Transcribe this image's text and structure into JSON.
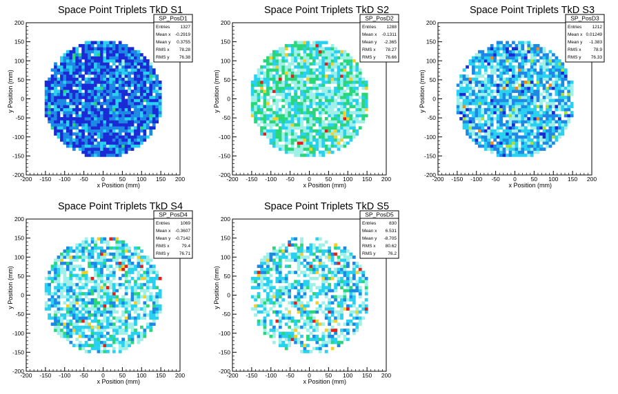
{
  "colors": {
    "background": "#ffffff",
    "frame": "#000000",
    "palette_low_to_high": [
      "#1a2bd6",
      "#1e88e5",
      "#29d0f0",
      "#9ef0e8",
      "#2bd67b",
      "#a8e13c",
      "#f0d02a",
      "#f08a1e",
      "#e0201a"
    ]
  },
  "chart_data": [
    {
      "type": "heatmap",
      "title": "Space Point Triplets TkD S1",
      "xlabel": "x Position (mm)",
      "ylabel": "y Position (mm)",
      "xlim": [
        -200,
        200
      ],
      "ylim": [
        -200,
        200
      ],
      "xticks": [
        -200,
        -150,
        -100,
        -50,
        0,
        50,
        100,
        150,
        200
      ],
      "yticks": [
        -200,
        -150,
        -100,
        -50,
        0,
        50,
        100,
        150,
        200
      ],
      "grid": false,
      "distribution": "disc",
      "disc_radius": 155,
      "bin_size": 8,
      "fill_fraction": 0.95,
      "dominant_level": 0.08,
      "max_level": 0.45,
      "stats": {
        "name": "SP_PosD1",
        "rows": [
          [
            "Entries",
            "1327"
          ],
          [
            "Mean x",
            "-0.2919"
          ],
          [
            "Mean y",
            "0.3755"
          ],
          [
            "RMS x",
            "78.28"
          ],
          [
            "RMS y",
            "76.38"
          ]
        ]
      }
    },
    {
      "type": "heatmap",
      "title": "Space Point Triplets TkD S2",
      "xlabel": "x Position (mm)",
      "ylabel": "y Position (mm)",
      "xlim": [
        -200,
        200
      ],
      "ylim": [
        -200,
        200
      ],
      "xticks": [
        -200,
        -150,
        -100,
        -50,
        0,
        50,
        100,
        150,
        200
      ],
      "yticks": [
        -200,
        -150,
        -100,
        -50,
        0,
        50,
        100,
        150,
        200
      ],
      "grid": false,
      "distribution": "disc",
      "disc_radius": 155,
      "bin_size": 8,
      "fill_fraction": 0.85,
      "dominant_level": 0.38,
      "max_level": 0.98,
      "stats": {
        "name": "SP_PosD2",
        "rows": [
          [
            "Entries",
            "1288"
          ],
          [
            "Mean x",
            "-0.1311"
          ],
          [
            "Mean y",
            "-2.365"
          ],
          [
            "RMS x",
            "78.27"
          ],
          [
            "RMS y",
            "76.66"
          ]
        ]
      }
    },
    {
      "type": "heatmap",
      "title": "Space Point Triplets TkD S3",
      "xlabel": "x Position (mm)",
      "ylabel": "y Position (mm)",
      "xlim": [
        -200,
        200
      ],
      "ylim": [
        -200,
        200
      ],
      "xticks": [
        -200,
        -150,
        -100,
        -50,
        0,
        50,
        100,
        150,
        200
      ],
      "yticks": [
        -200,
        -150,
        -100,
        -50,
        0,
        50,
        100,
        150,
        200
      ],
      "grid": false,
      "distribution": "disc",
      "disc_radius": 155,
      "bin_size": 8,
      "fill_fraction": 0.85,
      "dominant_level": 0.22,
      "max_level": 0.9,
      "stats": {
        "name": "SP_PosD3",
        "rows": [
          [
            "Entries",
            "1212"
          ],
          [
            "Mean x",
            "0.01249"
          ],
          [
            "Mean y",
            "-1.383"
          ],
          [
            "RMS x",
            "78.9"
          ],
          [
            "RMS y",
            "76.33"
          ]
        ]
      }
    },
    {
      "type": "heatmap",
      "title": "Space Point Triplets TkD S4",
      "xlabel": "x Position (mm)",
      "ylabel": "y Position (mm)",
      "xlim": [
        -200,
        200
      ],
      "ylim": [
        -200,
        200
      ],
      "xticks": [
        -200,
        -150,
        -100,
        -50,
        0,
        50,
        100,
        150,
        200
      ],
      "yticks": [
        -200,
        -150,
        -100,
        -50,
        0,
        50,
        100,
        150,
        200
      ],
      "grid": false,
      "distribution": "disc",
      "disc_radius": 155,
      "bin_size": 8,
      "fill_fraction": 0.72,
      "dominant_level": 0.3,
      "max_level": 1.0,
      "stats": {
        "name": "SP_PosD4",
        "rows": [
          [
            "Entries",
            "1069"
          ],
          [
            "Mean x",
            "-0.3607"
          ],
          [
            "Mean y",
            "-0.7142"
          ],
          [
            "RMS x",
            "79.4"
          ],
          [
            "RMS y",
            "76.71"
          ]
        ]
      }
    },
    {
      "type": "heatmap",
      "title": "Space Point Triplets TkD S5",
      "xlabel": "x Position (mm)",
      "ylabel": "y Position (mm)",
      "xlim": [
        -200,
        200
      ],
      "ylim": [
        -200,
        200
      ],
      "xticks": [
        -200,
        -150,
        -100,
        -50,
        0,
        50,
        100,
        150,
        200
      ],
      "yticks": [
        -200,
        -150,
        -100,
        -50,
        0,
        50,
        100,
        150,
        200
      ],
      "grid": false,
      "distribution": "disc",
      "disc_radius": 155,
      "bin_size": 8,
      "fill_fraction": 0.6,
      "dominant_level": 0.3,
      "max_level": 1.0,
      "stats": {
        "name": "SP_PosD5",
        "rows": [
          [
            "Entries",
            "830"
          ],
          [
            "Mean x",
            "6.531"
          ],
          [
            "Mean y",
            "-8.705"
          ],
          [
            "RMS x",
            "80.62"
          ],
          [
            "RMS y",
            "76.2"
          ]
        ]
      }
    }
  ]
}
